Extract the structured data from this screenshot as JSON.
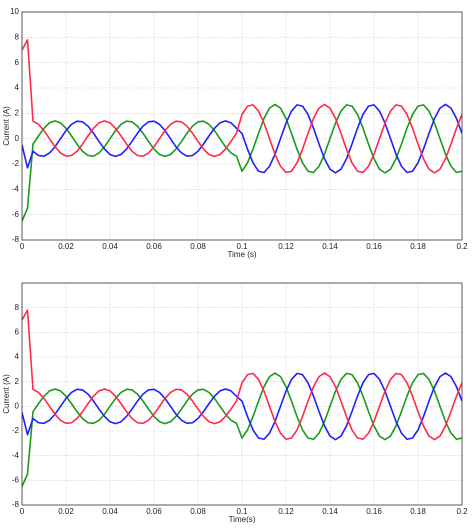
{
  "chart_data": [
    {
      "type": "line",
      "x_label": "Time (s)",
      "y_label": "Current (A)",
      "grid": true,
      "xlim": [
        0,
        0.2
      ],
      "xticks": [
        0,
        0.02,
        0.04,
        0.06,
        0.08,
        0.1,
        0.12,
        0.14,
        0.16,
        0.18,
        0.2
      ],
      "ylim": [
        -8,
        10
      ],
      "yticks": [
        -8,
        -6,
        -4,
        -2,
        0,
        2,
        4,
        6,
        8,
        10
      ],
      "x": [
        0,
        0.0025,
        0.005,
        0.0075,
        0.01,
        0.0125,
        0.015,
        0.0175,
        0.02,
        0.0225,
        0.025,
        0.0275,
        0.03,
        0.0325,
        0.035,
        0.0375,
        0.04,
        0.0425,
        0.045,
        0.0475,
        0.05,
        0.0525,
        0.055,
        0.0575,
        0.06,
        0.0625,
        0.065,
        0.0675,
        0.07,
        0.0725,
        0.075,
        0.0775,
        0.08,
        0.0825,
        0.085,
        0.0875,
        0.09,
        0.0925,
        0.095,
        0.0975,
        0.1,
        0.1025,
        0.105,
        0.1075,
        0.11,
        0.1125,
        0.115,
        0.1175,
        0.12,
        0.1225,
        0.125,
        0.1275,
        0.13,
        0.1325,
        0.135,
        0.1375,
        0.14,
        0.1425,
        0.145,
        0.1475,
        0.15,
        0.1525,
        0.155,
        0.1575,
        0.16,
        0.1625,
        0.165,
        0.1675,
        0.17,
        0.1725,
        0.175,
        0.1775,
        0.18,
        0.1825,
        0.185,
        0.1875,
        0.19,
        0.1925,
        0.195,
        0.1975,
        0.2
      ],
      "series": [
        {
          "color": "#1a9a1a",
          "values": [
            -6.5,
            -5.5,
            -0.43,
            0.22,
            0.82,
            1.25,
            1.4,
            1.25,
            0.82,
            0.22,
            -0.43,
            -0.99,
            -1.33,
            -1.38,
            -1.13,
            -0.64,
            0,
            0.64,
            1.13,
            1.38,
            1.33,
            0.99,
            0.43,
            -0.22,
            -0.82,
            -1.25,
            -1.4,
            -1.25,
            -0.82,
            -0.22,
            0.43,
            0.99,
            1.33,
            1.38,
            1.13,
            0.64,
            0,
            -0.64,
            -1.13,
            -1.38,
            -2.57,
            -1.91,
            -0.83,
            0.42,
            1.59,
            2.41,
            2.7,
            2.41,
            1.59,
            0.42,
            -0.83,
            -1.91,
            -2.57,
            -2.67,
            -2.18,
            -1.23,
            0,
            1.23,
            2.18,
            2.67,
            2.57,
            1.91,
            0.83,
            -0.42,
            -1.59,
            -2.41,
            -2.7,
            -2.41,
            -1.59,
            -0.42,
            0.83,
            1.91,
            2.57,
            2.67,
            2.18,
            1.23,
            0,
            -1.23,
            -2.18,
            -2.67,
            -2.57
          ]
        },
        {
          "color": "#1f1fff",
          "values": [
            -0.5,
            -2.3,
            -0.99,
            -1.33,
            -1.38,
            -1.13,
            -0.64,
            0,
            0.64,
            1.13,
            1.38,
            1.33,
            0.99,
            0.43,
            -0.22,
            -0.82,
            -1.25,
            -1.4,
            -1.25,
            -0.82,
            -0.22,
            0.43,
            0.99,
            1.33,
            1.38,
            1.13,
            0.64,
            0,
            -0.64,
            -1.13,
            -1.38,
            -1.33,
            -0.99,
            -0.43,
            0.22,
            0.82,
            1.25,
            1.4,
            1.25,
            0.82,
            0.42,
            -0.83,
            -1.91,
            -2.57,
            -2.67,
            -2.18,
            -1.23,
            0,
            1.23,
            2.18,
            2.67,
            2.57,
            1.91,
            0.83,
            -0.42,
            -1.59,
            -2.41,
            -2.7,
            -2.41,
            -1.59,
            -0.42,
            0.83,
            1.91,
            2.57,
            2.67,
            2.18,
            1.23,
            0,
            -1.23,
            -2.18,
            -2.67,
            -2.57,
            -1.91,
            -0.83,
            0.42,
            1.59,
            2.41,
            2.7,
            2.41,
            1.59,
            0.42
          ]
        },
        {
          "color": "#ff2a4a",
          "values": [
            7,
            7.8,
            1.38,
            1.13,
            0.64,
            0,
            -0.64,
            -1.13,
            -1.38,
            -1.33,
            -0.99,
            -0.43,
            0.22,
            0.82,
            1.25,
            1.4,
            1.25,
            0.82,
            0.22,
            -0.43,
            -0.99,
            -1.33,
            -1.38,
            -1.13,
            -0.64,
            0,
            0.64,
            1.13,
            1.38,
            1.33,
            0.99,
            0.43,
            -0.22,
            -0.82,
            -1.25,
            -1.4,
            -1.25,
            -0.82,
            -0.22,
            0.43,
            1.91,
            2.57,
            2.67,
            2.18,
            1.23,
            0,
            -1.23,
            -2.18,
            -2.67,
            -2.57,
            -1.91,
            -0.83,
            0.42,
            1.59,
            2.41,
            2.7,
            2.41,
            1.59,
            0.42,
            -0.83,
            -1.91,
            -2.57,
            -2.67,
            -2.18,
            -1.23,
            0,
            1.23,
            2.18,
            2.67,
            2.57,
            1.91,
            0.83,
            -0.42,
            -1.59,
            -2.41,
            -2.7,
            -2.41,
            -1.59,
            -0.42,
            0.83,
            1.91
          ]
        }
      ]
    },
    {
      "type": "line",
      "x_label": "Time(s)",
      "y_label": "Current (A)",
      "grid": true,
      "xlim": [
        0,
        0.2
      ],
      "xticks": [
        0,
        0.02,
        0.04,
        0.06,
        0.08,
        0.1,
        0.12,
        0.14,
        0.16,
        0.18,
        0.2
      ],
      "ylim": [
        -8,
        10
      ],
      "yticks": [
        -8,
        -6,
        -4,
        -2,
        0,
        2,
        4,
        6,
        8
      ],
      "x": [
        0,
        0.0025,
        0.005,
        0.0075,
        0.01,
        0.0125,
        0.015,
        0.0175,
        0.02,
        0.0225,
        0.025,
        0.0275,
        0.03,
        0.0325,
        0.035,
        0.0375,
        0.04,
        0.0425,
        0.045,
        0.0475,
        0.05,
        0.0525,
        0.055,
        0.0575,
        0.06,
        0.0625,
        0.065,
        0.0675,
        0.07,
        0.0725,
        0.075,
        0.0775,
        0.08,
        0.0825,
        0.085,
        0.0875,
        0.09,
        0.0925,
        0.095,
        0.0975,
        0.1,
        0.1025,
        0.105,
        0.1075,
        0.11,
        0.1125,
        0.115,
        0.1175,
        0.12,
        0.1225,
        0.125,
        0.1275,
        0.13,
        0.1325,
        0.135,
        0.1375,
        0.14,
        0.1425,
        0.145,
        0.1475,
        0.15,
        0.1525,
        0.155,
        0.1575,
        0.16,
        0.1625,
        0.165,
        0.1675,
        0.17,
        0.1725,
        0.175,
        0.1775,
        0.18,
        0.1825,
        0.185,
        0.1875,
        0.19,
        0.1925,
        0.195,
        0.1975,
        0.2
      ],
      "series": [
        {
          "color": "#1a9a1a",
          "values": [
            -6.5,
            -5.5,
            -0.43,
            0.22,
            0.82,
            1.25,
            1.4,
            1.25,
            0.82,
            0.22,
            -0.43,
            -0.99,
            -1.33,
            -1.38,
            -1.13,
            -0.64,
            0,
            0.64,
            1.13,
            1.38,
            1.33,
            0.99,
            0.43,
            -0.22,
            -0.82,
            -1.25,
            -1.4,
            -1.25,
            -0.82,
            -0.22,
            0.43,
            0.99,
            1.33,
            1.38,
            1.13,
            0.64,
            0,
            -0.64,
            -1.13,
            -1.38,
            -2.57,
            -1.91,
            -0.83,
            0.42,
            1.59,
            2.41,
            2.7,
            2.41,
            1.59,
            0.42,
            -0.83,
            -1.91,
            -2.57,
            -2.67,
            -2.18,
            -1.23,
            0,
            1.23,
            2.18,
            2.67,
            2.57,
            1.91,
            0.83,
            -0.42,
            -1.59,
            -2.41,
            -2.7,
            -2.41,
            -1.59,
            -0.42,
            0.83,
            1.91,
            2.57,
            2.67,
            2.18,
            1.23,
            0,
            -1.23,
            -2.18,
            -2.67,
            -2.57
          ]
        },
        {
          "color": "#1f1fff",
          "values": [
            -0.5,
            -2.3,
            -0.99,
            -1.33,
            -1.38,
            -1.13,
            -0.64,
            0,
            0.64,
            1.13,
            1.38,
            1.33,
            0.99,
            0.43,
            -0.22,
            -0.82,
            -1.25,
            -1.4,
            -1.25,
            -0.82,
            -0.22,
            0.43,
            0.99,
            1.33,
            1.38,
            1.13,
            0.64,
            0,
            -0.64,
            -1.13,
            -1.38,
            -1.33,
            -0.99,
            -0.43,
            0.22,
            0.82,
            1.25,
            1.4,
            1.25,
            0.82,
            0.42,
            -0.83,
            -1.91,
            -2.57,
            -2.67,
            -2.18,
            -1.23,
            0,
            1.23,
            2.18,
            2.67,
            2.57,
            1.91,
            0.83,
            -0.42,
            -1.59,
            -2.41,
            -2.7,
            -2.41,
            -1.59,
            -0.42,
            0.83,
            1.91,
            2.57,
            2.67,
            2.18,
            1.23,
            0,
            -1.23,
            -2.18,
            -2.67,
            -2.57,
            -1.91,
            -0.83,
            0.42,
            1.59,
            2.41,
            2.7,
            2.41,
            1.59,
            0.42
          ]
        },
        {
          "color": "#ff2a4a",
          "values": [
            7,
            7.8,
            1.38,
            1.13,
            0.64,
            0,
            -0.64,
            -1.13,
            -1.38,
            -1.33,
            -0.99,
            -0.43,
            0.22,
            0.82,
            1.25,
            1.4,
            1.25,
            0.82,
            0.22,
            -0.43,
            -0.99,
            -1.33,
            -1.38,
            -1.13,
            -0.64,
            0,
            0.64,
            1.13,
            1.38,
            1.33,
            0.99,
            0.43,
            -0.22,
            -0.82,
            -1.25,
            -1.4,
            -1.25,
            -0.82,
            -0.22,
            0.43,
            1.91,
            2.57,
            2.67,
            2.18,
            1.23,
            0,
            -1.23,
            -2.18,
            -2.67,
            -2.57,
            -1.91,
            -0.83,
            0.42,
            1.59,
            2.41,
            2.7,
            2.41,
            1.59,
            0.42,
            -0.83,
            -1.91,
            -2.57,
            -2.67,
            -2.18,
            -1.23,
            0,
            1.23,
            2.18,
            2.67,
            2.57,
            1.91,
            0.83,
            -0.42,
            -1.59,
            -2.41,
            -2.7,
            -2.41,
            -1.59,
            -0.42,
            0.83,
            1.91
          ]
        }
      ]
    }
  ]
}
